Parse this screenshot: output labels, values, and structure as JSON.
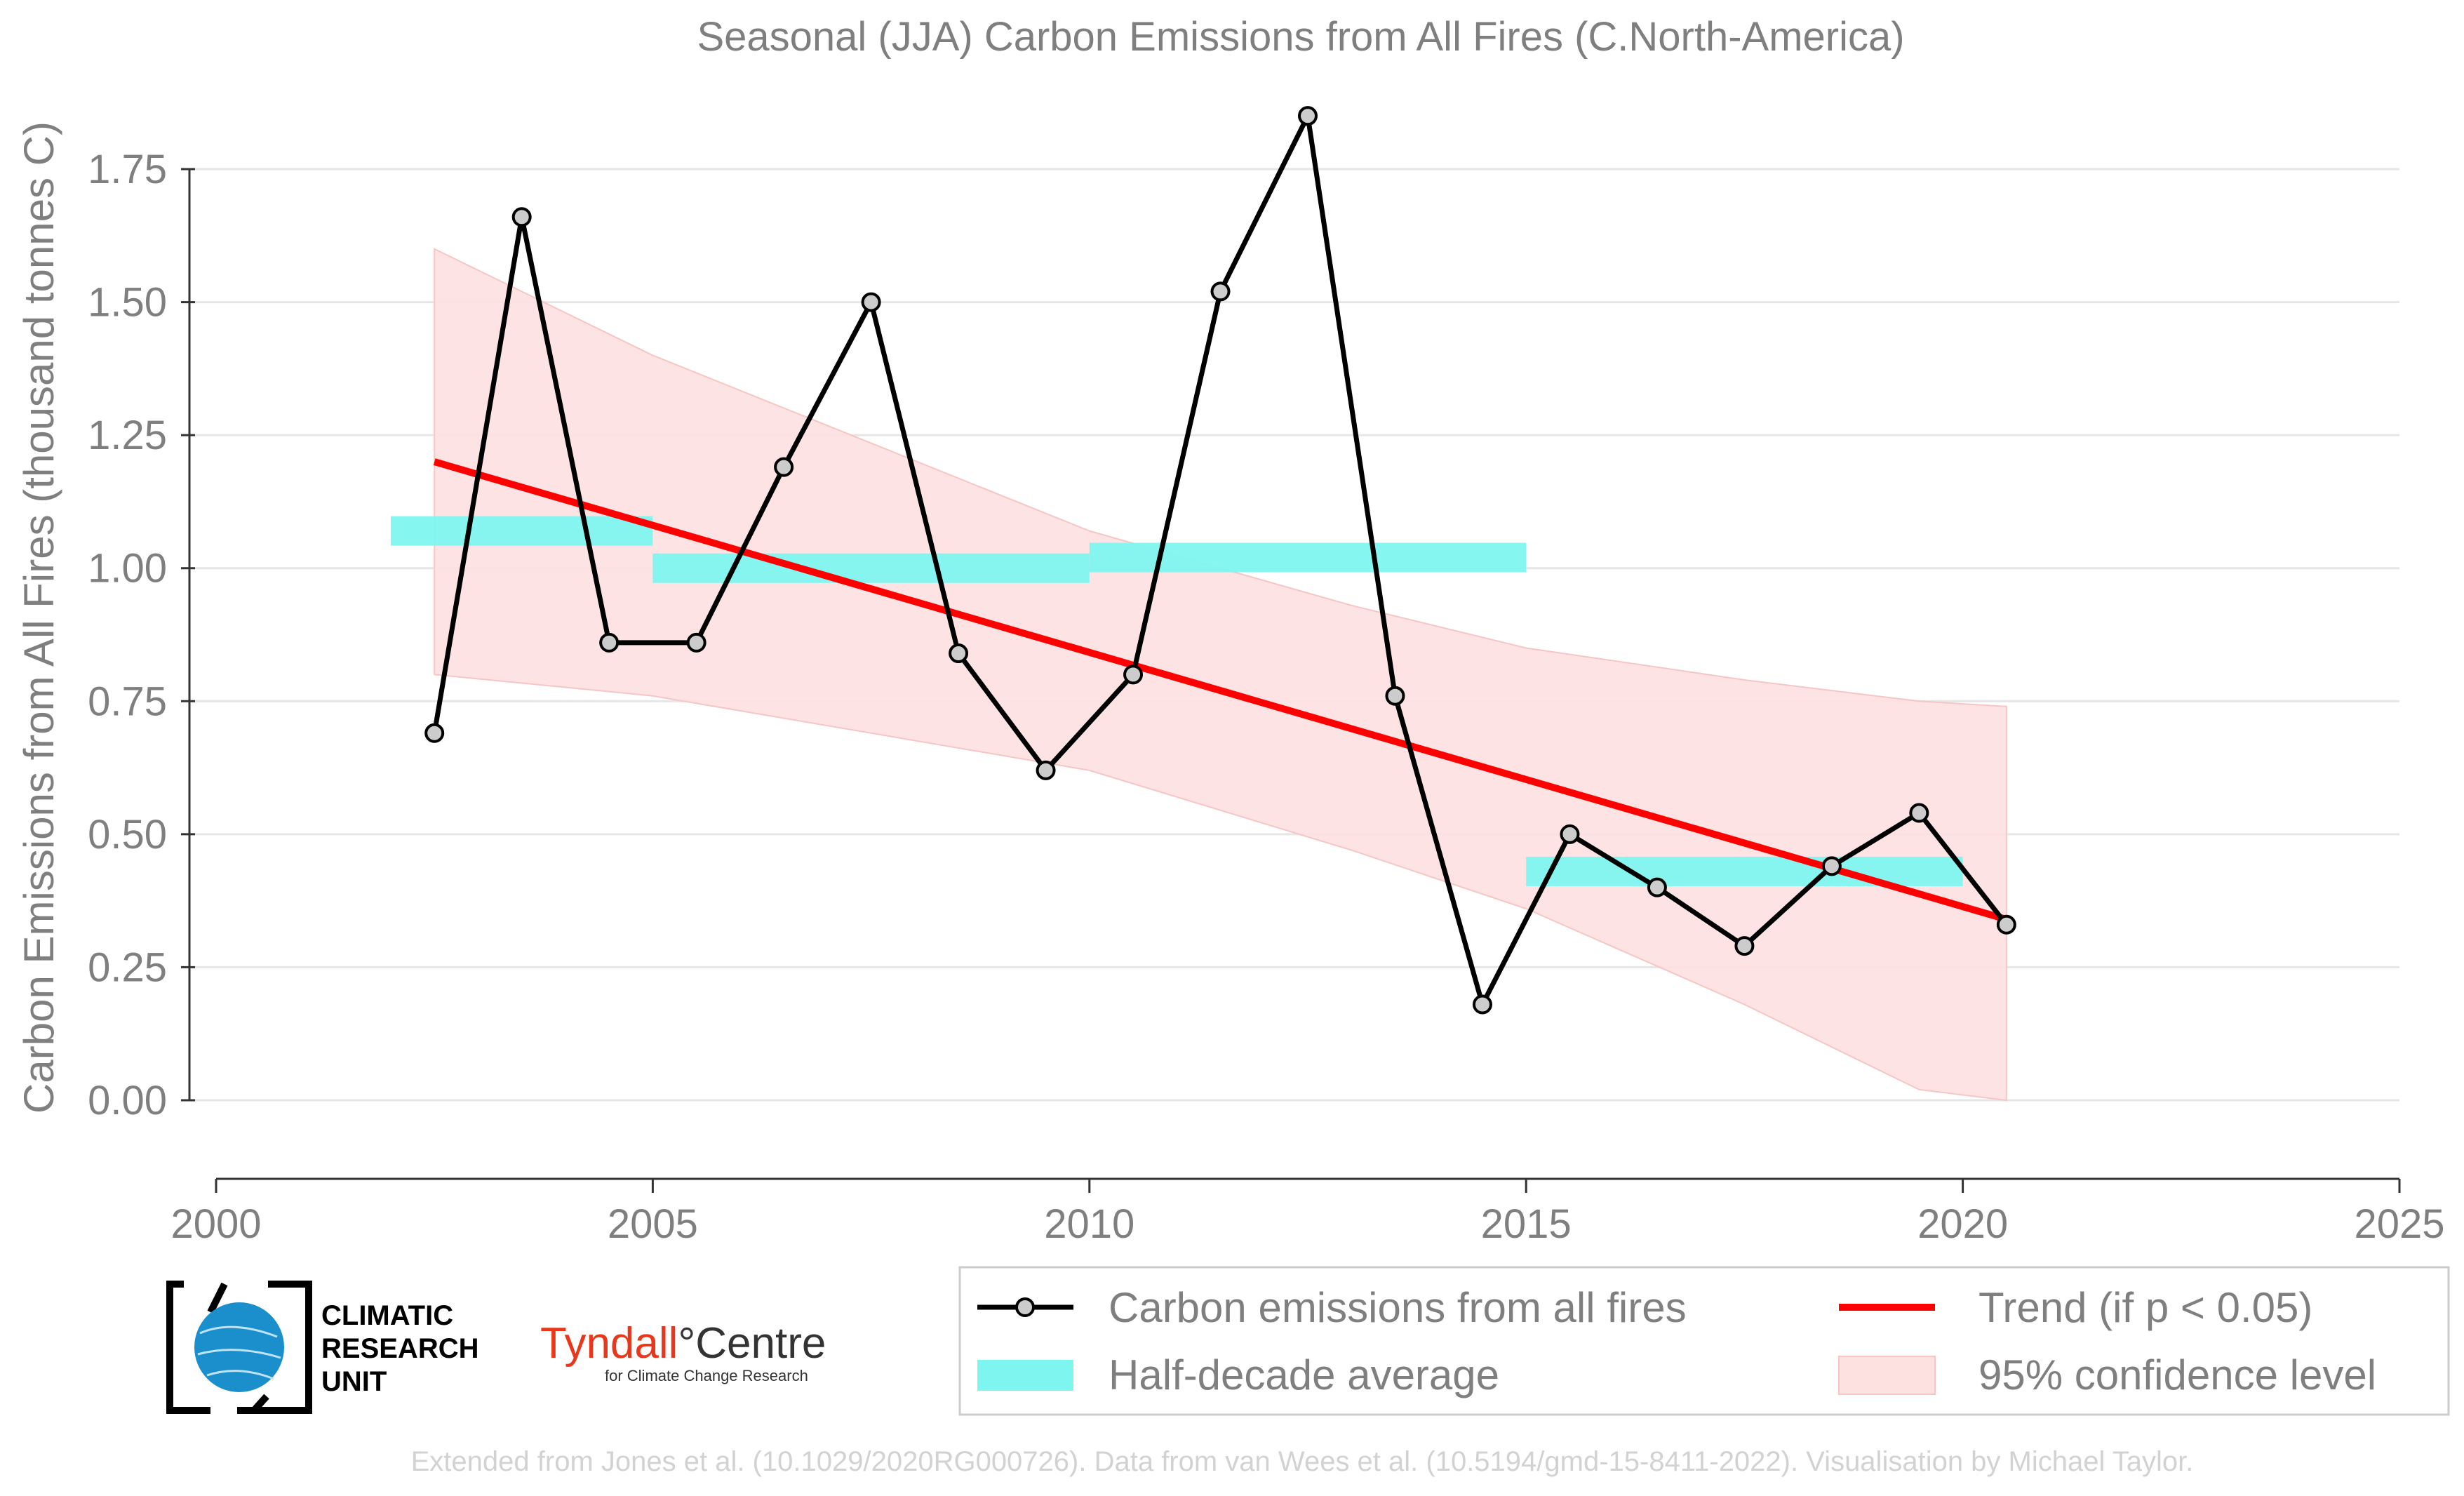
{
  "chart_data": {
    "type": "line",
    "title": "Seasonal (JJA) Carbon Emissions from All Fires (C.North-America)",
    "xlabel": "",
    "ylabel": "Carbon Emissions from All Fires (thousand tonnes C)",
    "xlim": [
      2000,
      2025
    ],
    "ylim": [
      -0.15,
      1.9
    ],
    "xticks": [
      2000,
      2005,
      2010,
      2015,
      2020,
      2025
    ],
    "yticks": [
      0.0,
      0.25,
      0.5,
      0.75,
      1.0,
      1.25,
      1.5,
      1.75
    ],
    "xtick_labels": [
      "2000",
      "2005",
      "2010",
      "2015",
      "2020",
      "2025"
    ],
    "ytick_labels": [
      "0.00",
      "0.25",
      "0.50",
      "0.75",
      "1.00",
      "1.25",
      "1.50",
      "1.75"
    ],
    "grid": "horizontal",
    "series": [
      {
        "name": "Carbon emissions from all fires",
        "color": "#000000",
        "x": [
          2002.5,
          2003.5,
          2004.5,
          2005.5,
          2006.5,
          2007.5,
          2008.5,
          2009.5,
          2010.5,
          2011.5,
          2012.5,
          2013.5,
          2014.5,
          2015.5,
          2016.5,
          2017.5,
          2018.5,
          2019.5,
          2020.5
        ],
        "y": [
          0.69,
          1.66,
          0.86,
          0.86,
          1.19,
          1.5,
          0.84,
          0.62,
          0.8,
          1.52,
          1.85,
          0.76,
          0.18,
          0.5,
          0.4,
          0.29,
          0.44,
          0.54,
          0.33
        ]
      },
      {
        "name": "Half-decade average",
        "color": "#7ff5f0",
        "segments": [
          {
            "x0": 2002,
            "x1": 2005,
            "y": 1.07
          },
          {
            "x0": 2005,
            "x1": 2010,
            "y": 1.0
          },
          {
            "x0": 2010,
            "x1": 2015,
            "y": 1.02
          },
          {
            "x0": 2015,
            "x1": 2020,
            "y": 0.43
          }
        ]
      },
      {
        "name": "Trend (if p < 0.05)",
        "color": "#ff0000",
        "x": [
          2002.5,
          2020.5
        ],
        "y": [
          1.2,
          0.34
        ]
      },
      {
        "name": "95% confidence level",
        "color": "#fde0e0",
        "x": [
          2002.5,
          2005,
          2010,
          2013,
          2015,
          2017.5,
          2019.5,
          2020.5
        ],
        "upper": [
          1.6,
          1.4,
          1.07,
          0.93,
          0.85,
          0.79,
          0.75,
          0.74
        ],
        "lower": [
          0.8,
          0.76,
          0.62,
          0.47,
          0.36,
          0.18,
          0.02,
          0.0
        ]
      }
    ],
    "legend": {
      "position": "bottom-right",
      "items": [
        "Carbon emissions from all fires",
        "Trend (if p < 0.05)",
        "Half-decade average",
        "95% confidence level"
      ]
    }
  },
  "logos": {
    "cru_text": [
      "CLIMATIC",
      "RESEARCH",
      "UNIT"
    ],
    "tyndall_name": "Tyndall",
    "tyndall_degree": "°",
    "tyndall_centre": "Centre",
    "tyndall_sub": "for Climate Change Research"
  },
  "credit": "Extended from Jones et al. (10.1029/2020RG000726). Data from van Wees et al. (10.5194/gmd-15-8411-2022). Visualisation by Michael Taylor."
}
